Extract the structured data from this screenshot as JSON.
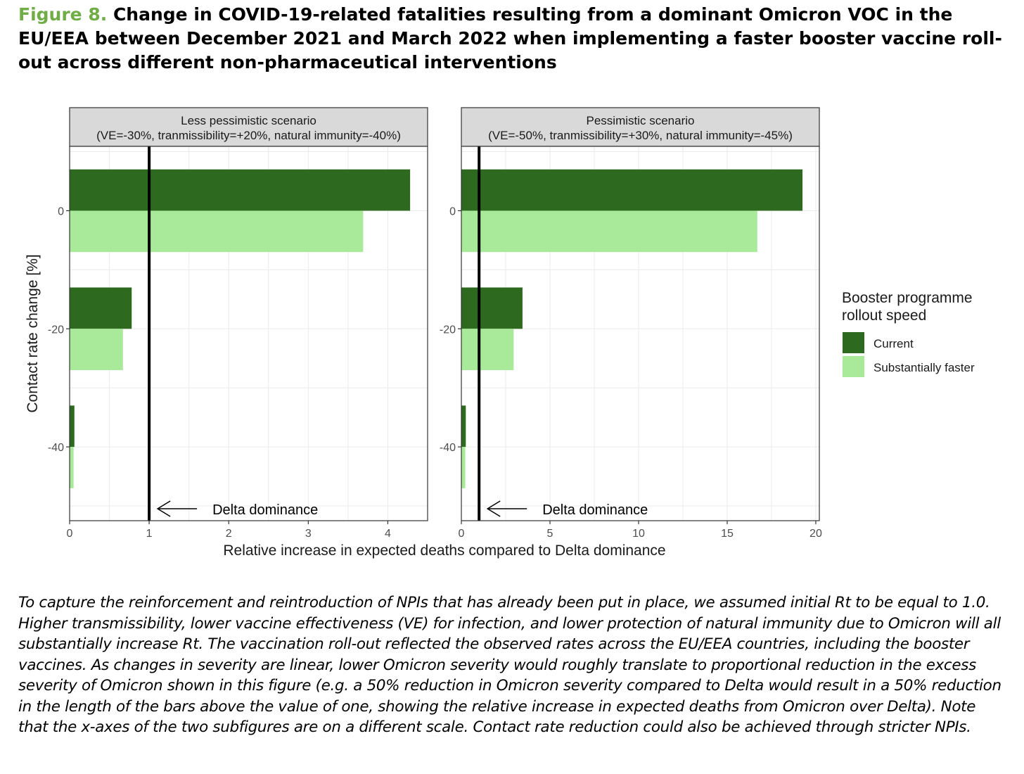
{
  "figure": {
    "label": "Figure 8.",
    "title": "Change in COVID-19-related fatalities resulting from a dominant Omicron VOC in the EU/EEA between December 2021 and March 2022 when implementing a faster booster vaccine roll-out across different non-pharmaceutical interventions",
    "caption": "To capture the reinforcement and reintroduction of NPIs that has already been put in place, we assumed initial Rt to be equal to 1.0. Higher transmissibility, lower vaccine effectiveness (VE) for infection, and lower protection of natural immunity due to Omicron will all substantially increase Rt. The vaccination roll-out reflected the observed rates across the EU/EEA countries, including the booster vaccines. As changes in severity are linear, lower Omicron severity would roughly translate to proportional reduction in the excess severity of Omicron shown in this figure (e.g. a 50% reduction in Omicron severity compared to Delta would result in a 50% reduction in the length of the bars above the value of one, showing the relative increase in expected deaths from Omicron over Delta). Note that the x-axes of the two subfigures are on a different scale. Contact rate reduction could also be achieved through stricter NPIs."
  },
  "chart_data": {
    "type": "bar",
    "orientation": "horizontal",
    "xlabel": "Relative increase in expected deaths compared to Delta dominance",
    "ylabel": "Contact rate change [%]",
    "categories": [
      0,
      -20,
      -40
    ],
    "legend": {
      "title_lines": [
        "Booster programme",
        "rollout speed"
      ],
      "placement": "right",
      "entries": [
        {
          "name": "Current",
          "color": "#2d6a1f"
        },
        {
          "name": "Substantially faster",
          "color": "#a8ea9a"
        }
      ]
    },
    "grid": true,
    "panels": [
      {
        "strip_line1": "Less pessimistic scenario",
        "strip_line2": "(VE=-30%, tranmissibility=+20%, natural immunity=-40%)",
        "xlim": [
          0,
          4.5
        ],
        "xticks": [
          0,
          1,
          2,
          3,
          4
        ],
        "reference_line": 1,
        "annotation": "Delta dominance",
        "series": [
          {
            "name": "Current",
            "values": [
              4.28,
              0.78,
              0.06
            ]
          },
          {
            "name": "Substantially faster",
            "values": [
              3.69,
              0.67,
              0.05
            ]
          }
        ]
      },
      {
        "strip_line1": "Pessimistic scenario",
        "strip_line2": "(VE=-50%, tranmissibility=+30%, natural immunity=-45%)",
        "xlim": [
          0,
          20.2
        ],
        "xticks": [
          0,
          5,
          10,
          15,
          20
        ],
        "reference_line": 1,
        "annotation": "Delta dominance",
        "series": [
          {
            "name": "Current",
            "values": [
              19.25,
              3.45,
              0.25
            ]
          },
          {
            "name": "Substantially faster",
            "values": [
              16.7,
              2.95,
              0.22
            ]
          }
        ]
      }
    ]
  }
}
